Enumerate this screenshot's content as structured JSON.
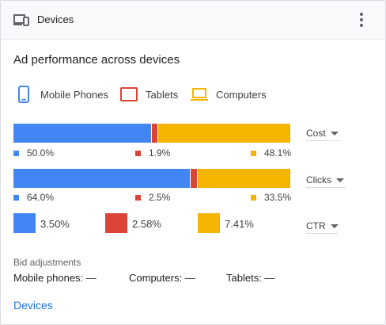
{
  "header": {
    "title": "Devices",
    "icon": "devices-icon",
    "more_icon": "more-vert-icon"
  },
  "section_title": "Ad performance across devices",
  "legend": [
    {
      "label": "Mobile Phones",
      "icon": "phone-icon",
      "color": "#4285f4"
    },
    {
      "label": "Tablets",
      "icon": "tablet-icon",
      "color": "#db4437"
    },
    {
      "label": "Computers",
      "icon": "laptop-icon",
      "color": "#f4b400"
    }
  ],
  "metrics": [
    {
      "name": "Cost",
      "mobile": "50.0%",
      "tablet": "1.9%",
      "computer": "48.1%",
      "shares": [
        50.0,
        1.9,
        48.1
      ]
    },
    {
      "name": "Clicks",
      "mobile": "64.0%",
      "tablet": "2.5%",
      "computer": "33.5%",
      "shares": [
        64.0,
        2.5,
        33.5
      ]
    }
  ],
  "ctr": {
    "name": "CTR",
    "mobile": "3.50%",
    "tablet": "2.58%",
    "computer": "7.41%"
  },
  "bid_adjustments": {
    "label": "Bid adjustments",
    "mobile": "Mobile phones: —",
    "computers": "Computers: —",
    "tablets": "Tablets: —"
  },
  "footer_link": "Devices",
  "colors": {
    "mobile": "#4285f4",
    "tablet": "#db4437",
    "computer": "#f4b400",
    "link": "#1a73e8"
  }
}
